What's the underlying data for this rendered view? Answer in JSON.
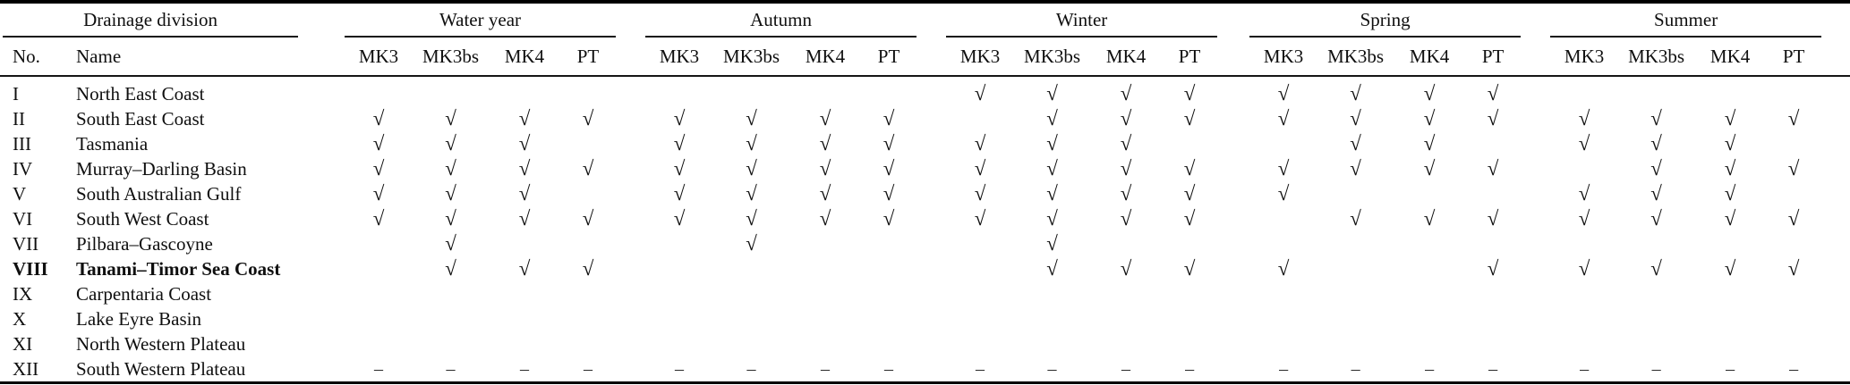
{
  "symbols": {
    "check": "√",
    "dash": "–"
  },
  "columns": {
    "no": "No.",
    "name": "Name"
  },
  "sub_headers": [
    "MK3",
    "MK3bs",
    "MK4",
    "PT"
  ],
  "groups": {
    "drainage": {
      "label": "Drainage division"
    },
    "water_year": {
      "label": "Water year"
    },
    "autumn": {
      "label": "Autumn"
    },
    "winter": {
      "label": "Winter"
    },
    "spring": {
      "label": "Spring"
    },
    "summer": {
      "label": "Summer"
    }
  },
  "group_order": [
    "water_year",
    "autumn",
    "winter",
    "spring",
    "summer"
  ],
  "rows": [
    {
      "no": "I",
      "name": "North East Coast",
      "bold": false,
      "marks": {
        "water_year": [
          "",
          "",
          "",
          ""
        ],
        "autumn": [
          "",
          "",
          "",
          ""
        ],
        "winter": [
          "c",
          "c",
          "c",
          "c"
        ],
        "spring": [
          "c",
          "c",
          "c",
          "c"
        ],
        "summer": [
          "",
          "",
          "",
          ""
        ]
      }
    },
    {
      "no": "II",
      "name": "South East Coast",
      "bold": false,
      "marks": {
        "water_year": [
          "c",
          "c",
          "c",
          "c"
        ],
        "autumn": [
          "c",
          "c",
          "c",
          "c"
        ],
        "winter": [
          "",
          "c",
          "c",
          "c"
        ],
        "spring": [
          "c",
          "c",
          "c",
          "c"
        ],
        "summer": [
          "c",
          "c",
          "c",
          "c"
        ]
      }
    },
    {
      "no": "III",
      "name": "Tasmania",
      "bold": false,
      "marks": {
        "water_year": [
          "c",
          "c",
          "c",
          ""
        ],
        "autumn": [
          "c",
          "c",
          "c",
          "c"
        ],
        "winter": [
          "c",
          "c",
          "c",
          ""
        ],
        "spring": [
          "",
          "c",
          "c",
          ""
        ],
        "summer": [
          "c",
          "c",
          "c",
          ""
        ]
      }
    },
    {
      "no": "IV",
      "name": "Murray–Darling Basin",
      "bold": false,
      "marks": {
        "water_year": [
          "c",
          "c",
          "c",
          "c"
        ],
        "autumn": [
          "c",
          "c",
          "c",
          "c"
        ],
        "winter": [
          "c",
          "c",
          "c",
          "c"
        ],
        "spring": [
          "c",
          "c",
          "c",
          "c"
        ],
        "summer": [
          "",
          "c",
          "c",
          "c"
        ]
      }
    },
    {
      "no": "V",
      "name": "South Australian Gulf",
      "bold": false,
      "marks": {
        "water_year": [
          "c",
          "c",
          "c",
          ""
        ],
        "autumn": [
          "c",
          "c",
          "c",
          "c"
        ],
        "winter": [
          "c",
          "c",
          "c",
          "c"
        ],
        "spring": [
          "c",
          "",
          "",
          ""
        ],
        "summer": [
          "c",
          "c",
          "c",
          ""
        ]
      }
    },
    {
      "no": "VI",
      "name": "South West Coast",
      "bold": false,
      "marks": {
        "water_year": [
          "c",
          "c",
          "c",
          "c"
        ],
        "autumn": [
          "c",
          "c",
          "c",
          "c"
        ],
        "winter": [
          "c",
          "c",
          "c",
          "c"
        ],
        "spring": [
          "",
          "c",
          "c",
          "c"
        ],
        "summer": [
          "c",
          "c",
          "c",
          "c"
        ]
      }
    },
    {
      "no": "VII",
      "name": "Pilbara–Gascoyne",
      "bold": false,
      "marks": {
        "water_year": [
          "",
          "c",
          "",
          ""
        ],
        "autumn": [
          "",
          "c",
          "",
          ""
        ],
        "winter": [
          "",
          "c",
          "",
          ""
        ],
        "spring": [
          "",
          "",
          "",
          ""
        ],
        "summer": [
          "",
          "",
          "",
          ""
        ]
      }
    },
    {
      "no": "VIII",
      "name": "Tanami–Timor Sea Coast",
      "bold": true,
      "marks": {
        "water_year": [
          "",
          "c",
          "c",
          "c"
        ],
        "autumn": [
          "",
          "",
          "",
          ""
        ],
        "winter": [
          "",
          "c",
          "c",
          "c"
        ],
        "spring": [
          "c",
          "",
          "",
          "c"
        ],
        "summer": [
          "c",
          "c",
          "c",
          "c"
        ]
      }
    },
    {
      "no": "IX",
      "name": "Carpentaria Coast",
      "bold": false,
      "marks": {
        "water_year": [
          "",
          "",
          "",
          ""
        ],
        "autumn": [
          "",
          "",
          "",
          ""
        ],
        "winter": [
          "",
          "",
          "",
          ""
        ],
        "spring": [
          "",
          "",
          "",
          ""
        ],
        "summer": [
          "",
          "",
          "",
          ""
        ]
      }
    },
    {
      "no": "X",
      "name": "Lake Eyre Basin",
      "bold": false,
      "marks": {
        "water_year": [
          "",
          "",
          "",
          ""
        ],
        "autumn": [
          "",
          "",
          "",
          ""
        ],
        "winter": [
          "",
          "",
          "",
          ""
        ],
        "spring": [
          "",
          "",
          "",
          ""
        ],
        "summer": [
          "",
          "",
          "",
          ""
        ]
      }
    },
    {
      "no": "XI",
      "name": "North Western Plateau",
      "bold": false,
      "marks": {
        "water_year": [
          "",
          "",
          "",
          ""
        ],
        "autumn": [
          "",
          "",
          "",
          ""
        ],
        "winter": [
          "",
          "",
          "",
          ""
        ],
        "spring": [
          "",
          "",
          "",
          ""
        ],
        "summer": [
          "",
          "",
          "",
          ""
        ]
      }
    },
    {
      "no": "XII",
      "name": "South Western Plateau",
      "bold": false,
      "marks": {
        "water_year": [
          "d",
          "d",
          "d",
          "d"
        ],
        "autumn": [
          "d",
          "d",
          "d",
          "d"
        ],
        "winter": [
          "d",
          "d",
          "d",
          "d"
        ],
        "spring": [
          "d",
          "d",
          "d",
          "d"
        ],
        "summer": [
          "d",
          "d",
          "d",
          "d"
        ]
      }
    }
  ]
}
